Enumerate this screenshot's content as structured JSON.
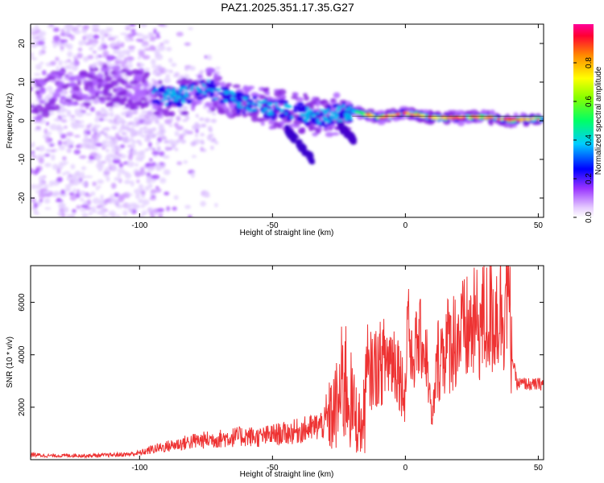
{
  "title": "PAZ1.2025.351.17.35.G27",
  "chart_data": [
    {
      "type": "heatmap",
      "xlabel": "Height of straight line (km)",
      "ylabel": "Frequency (Hz)",
      "xlim": [
        -141,
        52
      ],
      "ylim": [
        -25,
        25
      ],
      "xticks": [
        -100,
        -50,
        0,
        50
      ],
      "yticks": [
        -20,
        -10,
        0,
        10,
        20
      ],
      "colorbar": {
        "label": "Normalized spectral amplitude",
        "range": [
          0,
          1
        ],
        "ticks": [
          "0.0",
          "0.2",
          "0.4",
          "0.6",
          "0.8"
        ],
        "tick_values": [
          0.0,
          0.2,
          0.4,
          0.6,
          0.8
        ]
      },
      "ridge": [
        {
          "x": -140,
          "y": 5
        },
        {
          "x": -130,
          "y": 8
        },
        {
          "x": -120,
          "y": 9
        },
        {
          "x": -110,
          "y": 9
        },
        {
          "x": -100,
          "y": 8
        },
        {
          "x": -90,
          "y": 6
        },
        {
          "x": -80,
          "y": 7
        },
        {
          "x": -75,
          "y": 9
        },
        {
          "x": -70,
          "y": 7
        },
        {
          "x": -60,
          "y": 4
        },
        {
          "x": -50,
          "y": 3
        },
        {
          "x": -40,
          "y": 2
        },
        {
          "x": -30,
          "y": 1
        },
        {
          "x": -20,
          "y": 2.5
        },
        {
          "x": -10,
          "y": 0.8
        },
        {
          "x": 0,
          "y": 2
        },
        {
          "x": 10,
          "y": 0.8
        },
        {
          "x": 20,
          "y": 0.8
        },
        {
          "x": 30,
          "y": 1
        },
        {
          "x": 40,
          "y": 0.2
        },
        {
          "x": 52,
          "y": 0.5
        }
      ]
    },
    {
      "type": "line",
      "xlabel": "Height of straight line (km)",
      "ylabel": "SNR (10 * v/v)",
      "xlim": [
        -141,
        52
      ],
      "ylim": [
        0,
        7400
      ],
      "xticks": [
        -100,
        -50,
        0,
        50
      ],
      "yticks": [
        2000,
        4000,
        6000
      ],
      "color": "#ee3333",
      "series": [
        {
          "name": "SNR",
          "x": [
            -141,
            -135,
            -130,
            -125,
            -120,
            -115,
            -110,
            -105,
            -100,
            -95,
            -90,
            -85,
            -80,
            -75,
            -70,
            -65,
            -60,
            -55,
            -50,
            -45,
            -40,
            -35,
            -30,
            -27,
            -25,
            -23,
            -22,
            -20,
            -18,
            -16,
            -15,
            -13,
            -10,
            -8,
            -5,
            -3,
            -1,
            0,
            1,
            2,
            4,
            6,
            8,
            10,
            12,
            15,
            18,
            20,
            25,
            30,
            33,
            35,
            37,
            38,
            39,
            40,
            42,
            45,
            48,
            52
          ],
          "y": [
            200,
            150,
            150,
            160,
            150,
            160,
            180,
            200,
            250,
            400,
            500,
            600,
            700,
            750,
            800,
            850,
            900,
            850,
            950,
            1000,
            1100,
            1200,
            1400,
            1800,
            2200,
            3200,
            2800,
            2000,
            1500,
            1200,
            2600,
            3400,
            3600,
            3800,
            3900,
            3700,
            2800,
            2500,
            6400,
            3600,
            4300,
            4600,
            3900,
            1300,
            3800,
            4300,
            4600,
            4700,
            5000,
            5300,
            5500,
            5700,
            5800,
            6900,
            5900,
            4000,
            2900,
            2900,
            2850,
            2900
          ]
        }
      ]
    }
  ]
}
